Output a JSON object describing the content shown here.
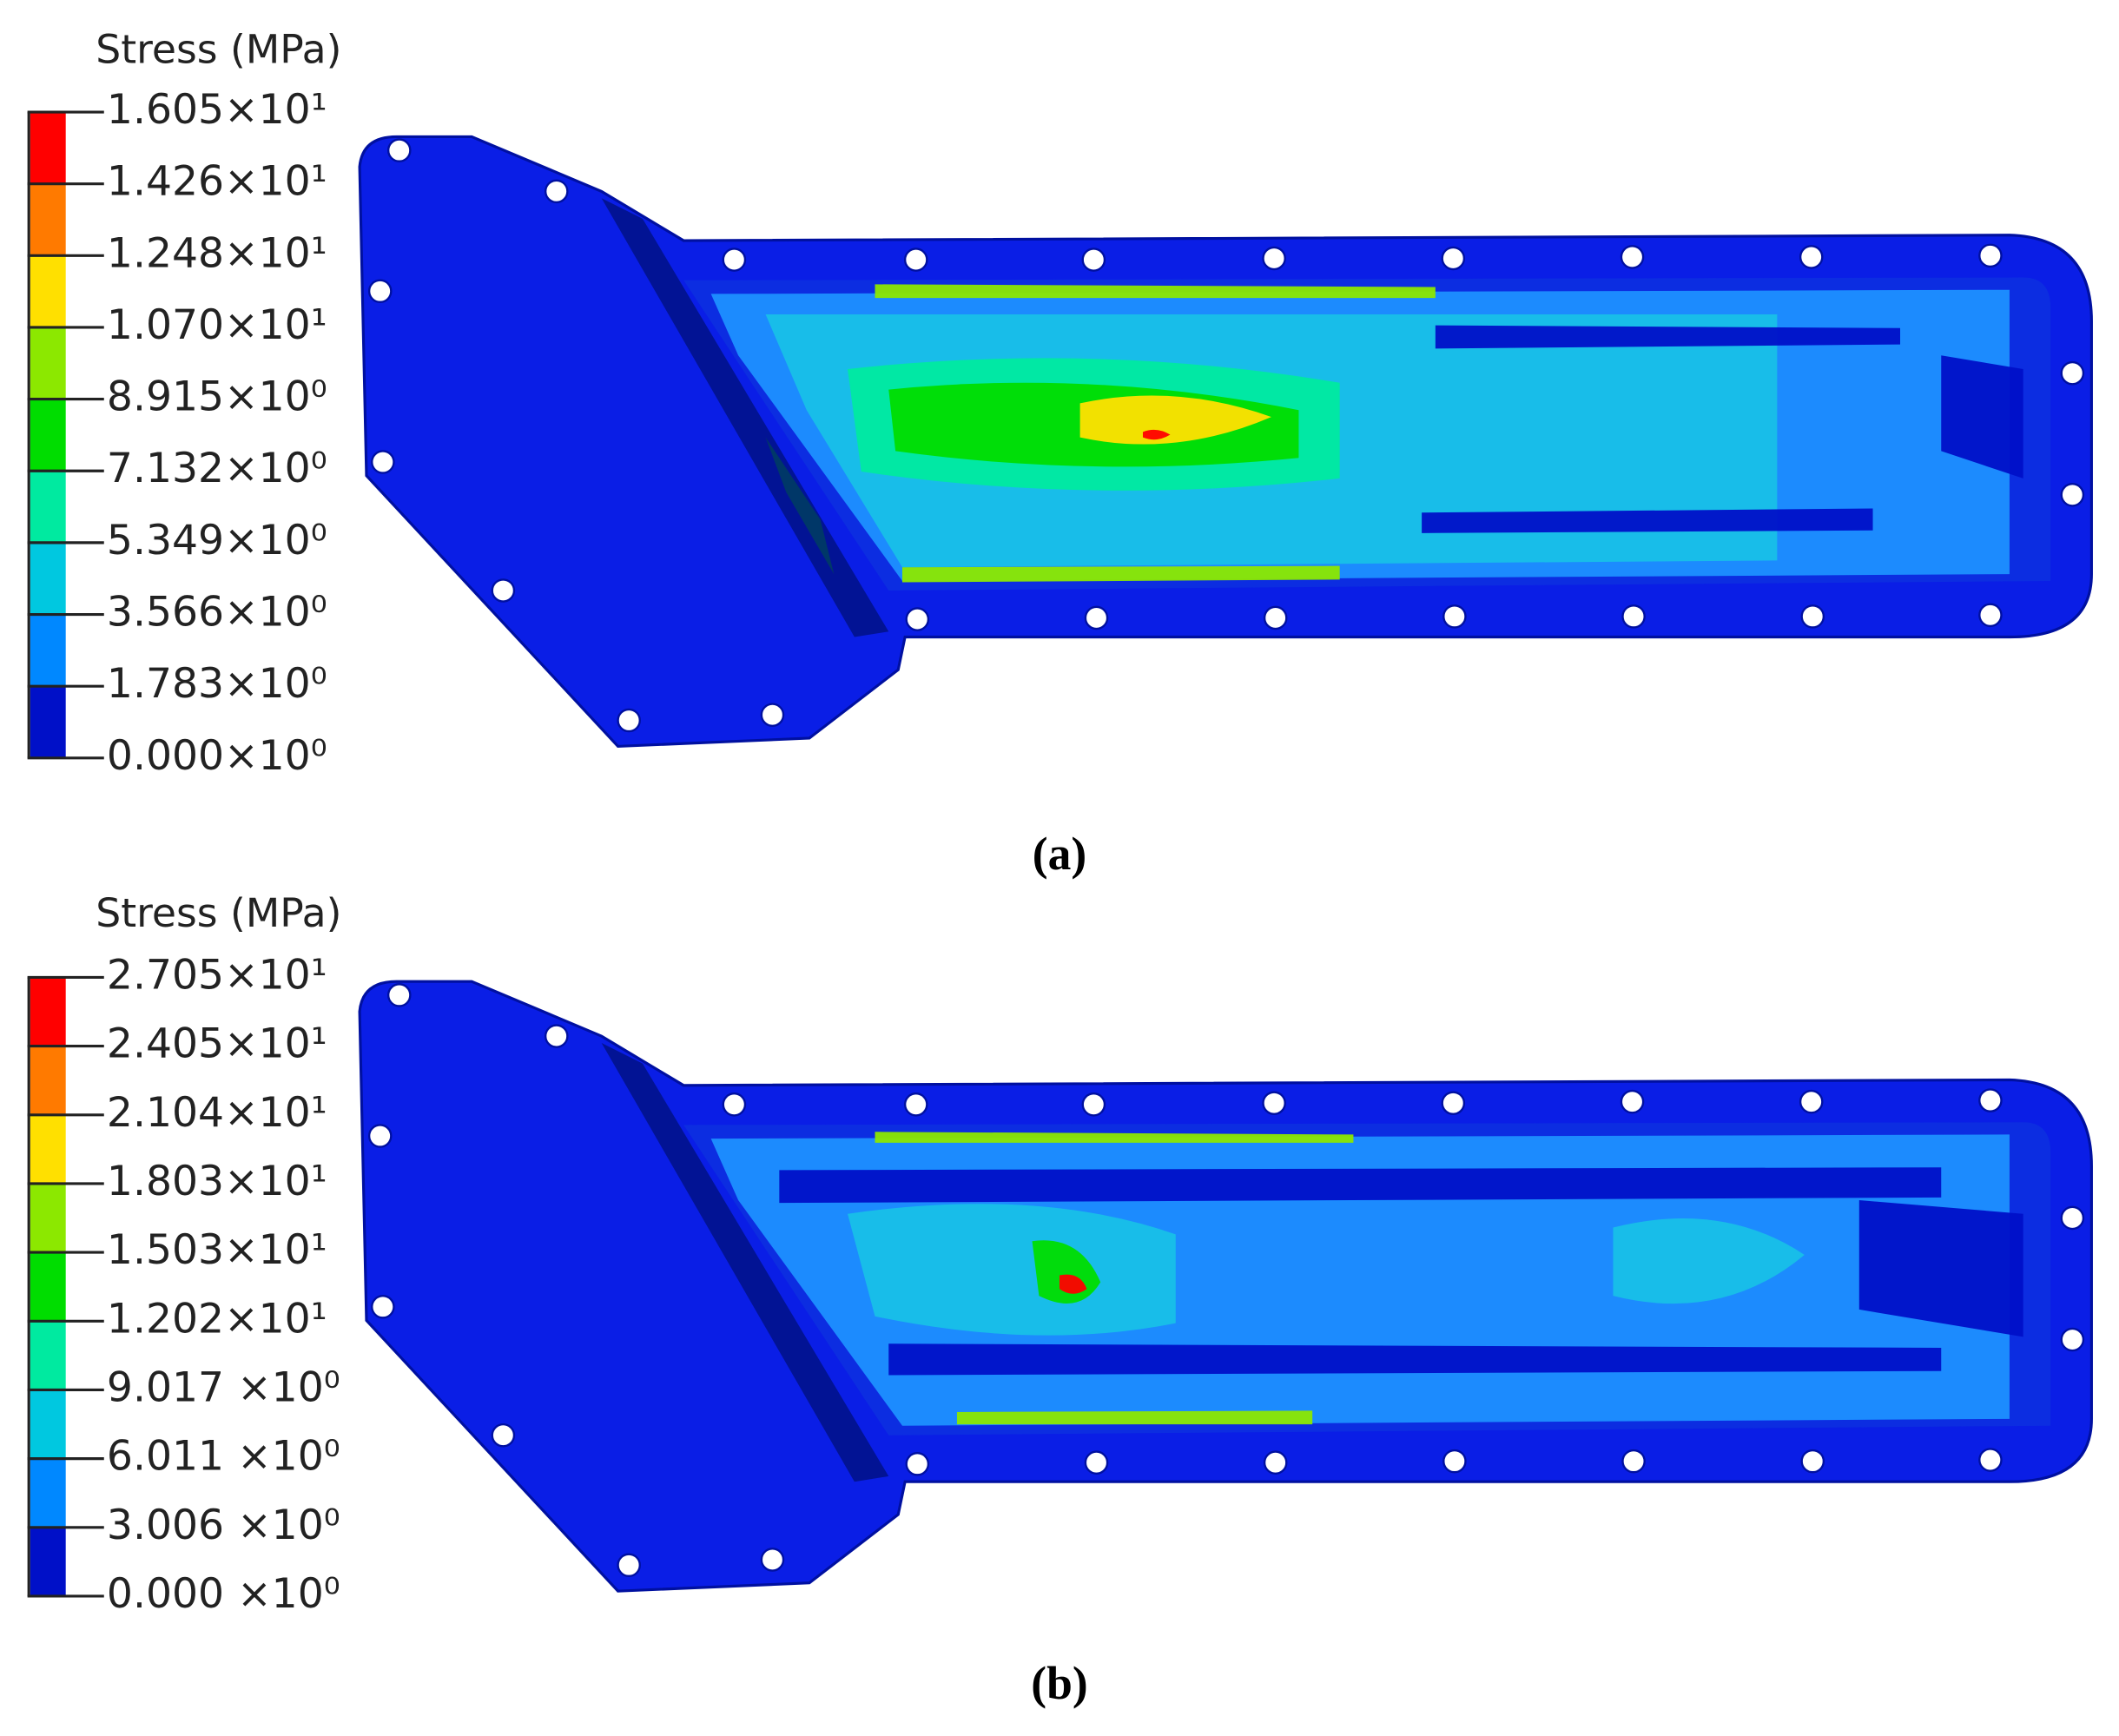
{
  "panels": [
    {
      "legend": {
        "title": "Stress (MPa)",
        "ticks": [
          "1.605×10¹",
          "1.426×10¹",
          "1.248×10¹",
          "1.070×10¹",
          "8.915×10⁰",
          "7.132×10⁰",
          "5.349×10⁰",
          "3.566×10⁰",
          "1.783×10⁰",
          "0.000×10⁰"
        ]
      },
      "caption": "(a)"
    },
    {
      "legend": {
        "title": "Stress (MPa)",
        "ticks": [
          "2.705×10¹",
          "2.405×10¹",
          "2.104×10¹",
          "1.803×10¹",
          "1.503×10¹",
          "1.202×10¹",
          "9.017 ×10⁰",
          "6.011 ×10⁰",
          "3.006 ×10⁰",
          "0.000 ×10⁰"
        ]
      },
      "caption": "(b)"
    }
  ]
}
